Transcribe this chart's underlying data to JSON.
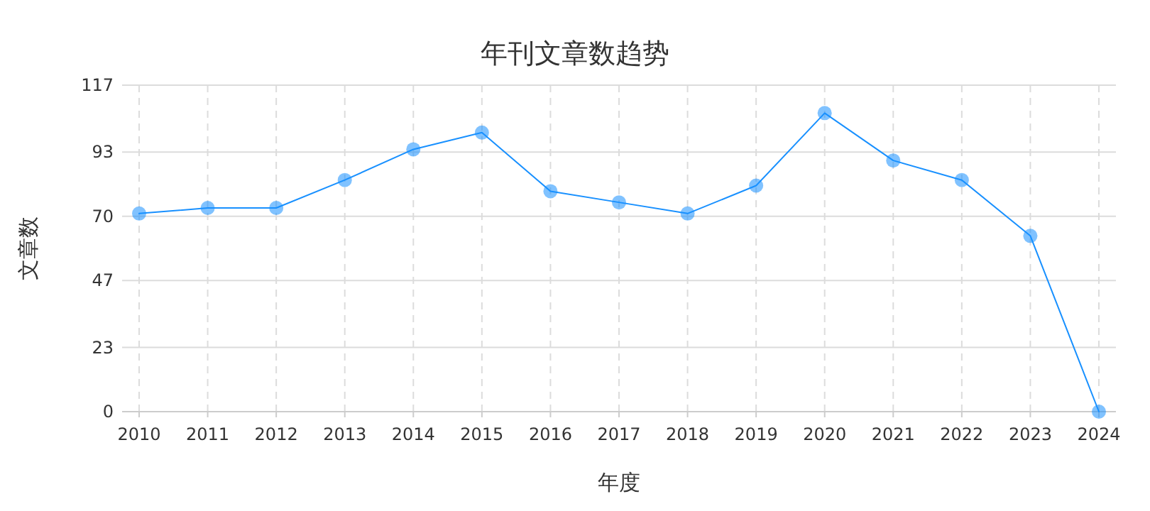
{
  "chart_data": {
    "type": "line",
    "title": "年刊文章数趋势",
    "xlabel": "年度",
    "ylabel": "文章数",
    "categories": [
      "2010",
      "2011",
      "2012",
      "2013",
      "2014",
      "2015",
      "2016",
      "2017",
      "2018",
      "2019",
      "2020",
      "2021",
      "2022",
      "2023",
      "2024"
    ],
    "series": [
      {
        "color": "#1890ff",
        "values": [
          71,
          73,
          73,
          83,
          94,
          100,
          79,
          75,
          71,
          81,
          107,
          90,
          83,
          63,
          0
        ]
      }
    ],
    "ylim": [
      0,
      117
    ],
    "yticks": [
      0,
      23,
      47,
      70,
      93,
      117
    ],
    "grid": true,
    "marker": "circle",
    "line_style": "solid"
  }
}
